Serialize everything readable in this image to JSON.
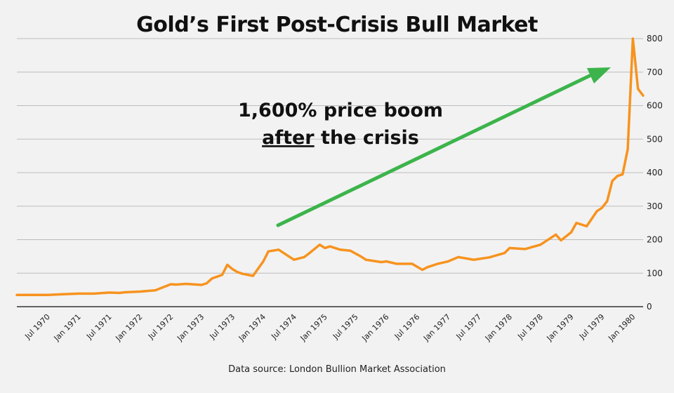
{
  "title": "Gold’s First Post-Crisis Bull Market",
  "source": "Data source: London Bullion Market Association",
  "annotation": {
    "line1": "1,600% price boom",
    "line2_underlined": "after",
    "line2_rest": " the crisis"
  },
  "colors": {
    "line": "#f7931e",
    "arrow": "#3cb44b",
    "grid": "#bcbcbc",
    "background": "#f2f2f2"
  },
  "chart_data": {
    "type": "line",
    "title": "Gold’s First Post-Crisis Bull Market",
    "xlabel": "",
    "ylabel": "",
    "ylim": [
      0,
      800
    ],
    "yticks": [
      0,
      100,
      200,
      300,
      400,
      500,
      600,
      700,
      800
    ],
    "xlim": [
      "1970-01",
      "1980-03"
    ],
    "xticks": [
      "Jul 1970",
      "Jan 1971",
      "Jul 1971",
      "Jan 1972",
      "Jul 1972",
      "Jan 1973",
      "Jul 1973",
      "Jan 1974",
      "Jul 1974",
      "Jan 1975",
      "Jul 1975",
      "Jan 1976",
      "Jul 1976",
      "Jan 1977",
      "Jul 1977",
      "Jan 1978",
      "Jul 1978",
      "Jan 1979",
      "Jul 1979",
      "Jan 1980"
    ],
    "grid": "horizontal",
    "legend": "none",
    "series": [
      {
        "x": [
          "1970-01",
          "1970-04",
          "1970-07",
          "1970-10",
          "1971-01",
          "1971-04",
          "1971-07",
          "1971-09",
          "1971-10",
          "1972-01",
          "1972-04",
          "1972-07",
          "1972-08",
          "1972-10",
          "1973-01",
          "1973-02",
          "1973-03",
          "1973-05",
          "1973-06",
          "1973-07",
          "1973-08",
          "1973-09",
          "1973-11",
          "1974-01",
          "1974-02",
          "1974-04",
          "1974-06",
          "1974-07",
          "1974-09",
          "1974-10",
          "1974-12",
          "1975-01",
          "1975-02",
          "1975-04",
          "1975-06",
          "1975-08",
          "1975-09",
          "1975-12",
          "1976-01",
          "1976-03",
          "1976-06",
          "1976-08",
          "1976-09",
          "1976-11",
          "1977-01",
          "1977-03",
          "1977-06",
          "1977-09",
          "1977-12",
          "1978-01",
          "1978-04",
          "1978-07",
          "1978-09",
          "1978-10",
          "1978-11",
          "1979-01",
          "1979-02",
          "1979-04",
          "1979-06",
          "1979-07",
          "1979-08",
          "1979-09",
          "1979-10",
          "1979-11",
          "1979-12",
          "1980-01",
          "1980-02",
          "1980-03"
        ],
        "values": [
          35,
          35,
          35,
          37,
          39,
          39,
          42,
          41,
          43,
          45,
          49,
          67,
          66,
          68,
          65,
          70,
          84,
          95,
          125,
          112,
          103,
          98,
          92,
          135,
          165,
          170,
          150,
          140,
          148,
          160,
          185,
          175,
          180,
          170,
          167,
          150,
          140,
          133,
          135,
          128,
          128,
          110,
          118,
          128,
          135,
          148,
          140,
          147,
          160,
          175,
          172,
          185,
          205,
          215,
          198,
          222,
          250,
          240,
          285,
          295,
          315,
          375,
          390,
          395,
          470,
          800,
          650,
          630
        ]
      }
    ]
  }
}
